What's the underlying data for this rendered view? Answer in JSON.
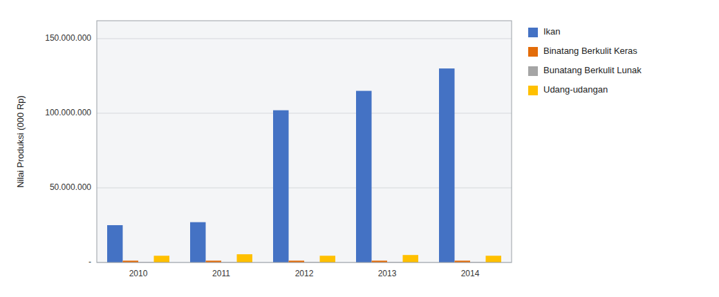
{
  "chart_data": {
    "type": "bar",
    "y_label": "Nilai Produksi (000 Rp)",
    "categories": [
      "2010",
      "2011",
      "2012",
      "2013",
      "2014"
    ],
    "series": [
      {
        "name": "Ikan",
        "color": "#4472C4",
        "values": [
          25000000,
          27000000,
          102000000,
          115000000,
          130000000
        ]
      },
      {
        "name": "Binatang Berkulit Keras",
        "color": "#E36C09",
        "values": [
          1200000,
          1200000,
          1200000,
          1200000,
          1200000
        ]
      },
      {
        "name": "Bunatang Berkulit Lunak",
        "color": "#A5A5A5",
        "values": [
          300000,
          300000,
          300000,
          300000,
          300000
        ]
      },
      {
        "name": "Udang-udangan",
        "color": "#FFC000",
        "values": [
          4500000,
          5500000,
          4500000,
          5000000,
          4500000
        ]
      }
    ],
    "ylim": [
      0,
      162000000
    ],
    "yticks": [
      {
        "value": 0,
        "label": "-"
      },
      {
        "value": 50000000,
        "label": "50.000.000"
      },
      {
        "value": 100000000,
        "label": "100.000.000"
      },
      {
        "value": 150000000,
        "label": "150.000.000"
      }
    ],
    "grid": true,
    "legend": "right"
  }
}
